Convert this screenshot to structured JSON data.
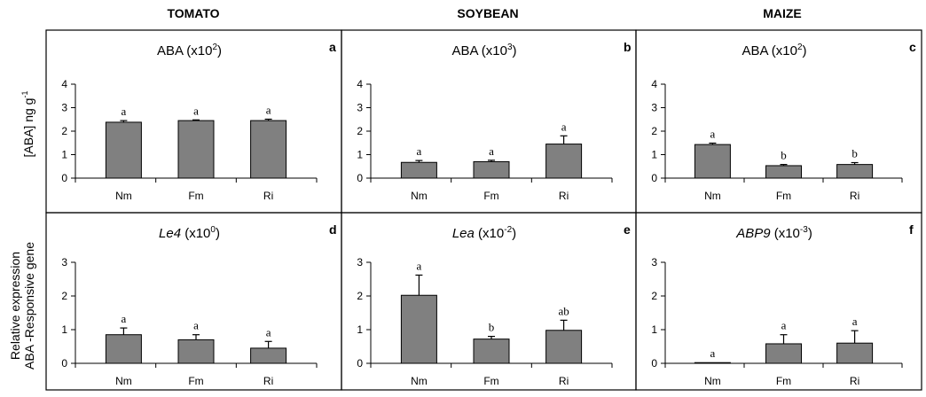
{
  "columns": [
    "TOMATO",
    "SOYBEAN",
    "MAIZE"
  ],
  "row_labels": {
    "top": "[ABA] ng g",
    "top_sup": "-1",
    "bottom_line1": "Relative expression",
    "bottom_line2": "ABA -Responsive gene"
  },
  "chart_data": [
    {
      "type": "bar",
      "letter": "a",
      "title": {
        "pre": "ABA (x10",
        "sup": "2",
        "post": ")",
        "italic": false
      },
      "categories": [
        "Nm",
        "Fm",
        "Ri"
      ],
      "values": [
        2.38,
        2.45,
        2.45
      ],
      "errors": [
        0.07,
        0.03,
        0.06
      ],
      "sig": [
        "a",
        "a",
        "a"
      ],
      "ylim": [
        0,
        4
      ],
      "yticks": [
        "0",
        "1",
        "2",
        "3",
        "4"
      ]
    },
    {
      "type": "bar",
      "letter": "b",
      "title": {
        "pre": "ABA (x10",
        "sup": "3",
        "post": ")",
        "italic": false
      },
      "categories": [
        "Nm",
        "Fm",
        "Ri"
      ],
      "values": [
        0.67,
        0.7,
        1.45
      ],
      "errors": [
        0.08,
        0.06,
        0.35
      ],
      "sig": [
        "a",
        "a",
        "a"
      ],
      "ylim": [
        0,
        4
      ],
      "yticks": [
        "0",
        "1",
        "2",
        "3",
        "4"
      ]
    },
    {
      "type": "bar",
      "letter": "c",
      "title": {
        "pre": "ABA (x10",
        "sup": "2",
        "post": ")",
        "italic": false
      },
      "categories": [
        "Nm",
        "Fm",
        "Ri"
      ],
      "values": [
        1.43,
        0.53,
        0.58
      ],
      "errors": [
        0.06,
        0.05,
        0.08
      ],
      "sig": [
        "a",
        "b",
        "b"
      ],
      "ylim": [
        0,
        4
      ],
      "yticks": [
        "0",
        "1",
        "2",
        "3",
        "4"
      ]
    },
    {
      "type": "bar",
      "letter": "d",
      "title": {
        "pre": "Le4",
        "sup": "0",
        "post": ")",
        "mid": " (x10",
        "italic": true
      },
      "categories": [
        "Nm",
        "Fm",
        "Ri"
      ],
      "values": [
        0.85,
        0.7,
        0.45
      ],
      "errors": [
        0.2,
        0.15,
        0.2
      ],
      "sig": [
        "a",
        "a",
        "a"
      ],
      "ylim": [
        0,
        3
      ],
      "yticks": [
        "0",
        "1",
        "2",
        "3"
      ]
    },
    {
      "type": "bar",
      "letter": "e",
      "title": {
        "pre": "Lea",
        "sup": "-2",
        "post": ")",
        "mid": " (x10",
        "italic": true
      },
      "categories": [
        "Nm",
        "Fm",
        "Ri"
      ],
      "values": [
        2.02,
        0.72,
        0.98
      ],
      "errors": [
        0.6,
        0.08,
        0.3
      ],
      "sig": [
        "a",
        "b",
        "ab"
      ],
      "ylim": [
        0,
        3
      ],
      "yticks": [
        "0",
        "1",
        "2",
        "3"
      ]
    },
    {
      "type": "bar",
      "letter": "f",
      "title": {
        "pre": "ABP9",
        "sup": "-3",
        "post": ")",
        "mid": " (x10",
        "italic": true
      },
      "categories": [
        "Nm",
        "Fm",
        "Ri"
      ],
      "values": [
        0.02,
        0.58,
        0.6
      ],
      "errors": [
        0,
        0.27,
        0.37
      ],
      "sig": [
        "a",
        "a",
        "a"
      ],
      "ylim": [
        0,
        3
      ],
      "yticks": [
        "0",
        "1",
        "2",
        "3"
      ]
    }
  ],
  "colors": {
    "bar": "#808080",
    "bar_stroke": "#000000",
    "frame": "#000000"
  }
}
